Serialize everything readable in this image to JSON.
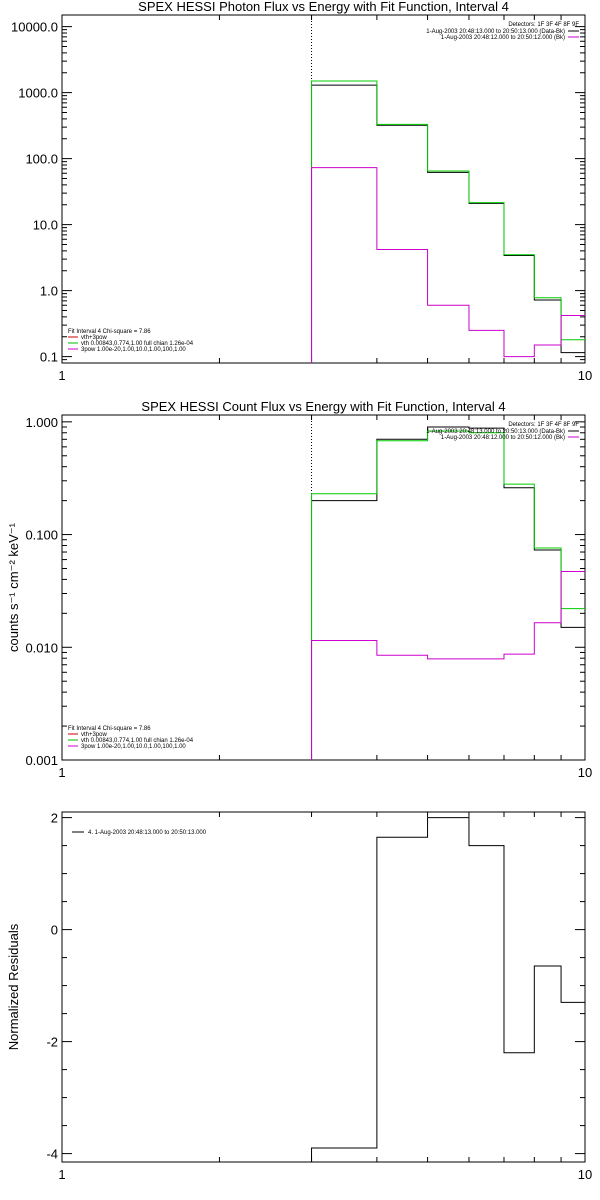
{
  "chart_data": [
    {
      "type": "line",
      "step": true,
      "title": "SPEX HESSI Photon Flux vs Energy with Fit Function, Interval 4",
      "xlabel": "",
      "ylabel": "",
      "xscale": "log",
      "yscale": "log",
      "xlim": [
        1,
        10
      ],
      "ylim": [
        0.08,
        15000
      ],
      "xticks": [
        {
          "v": 1,
          "label": "1"
        },
        {
          "v": 10,
          "label": "10"
        }
      ],
      "yticks": [
        {
          "v": 10000,
          "label": "10000.0"
        },
        {
          "v": 1000,
          "label": "1000.0"
        },
        {
          "v": 100,
          "label": "100.0"
        },
        {
          "v": 10,
          "label": "10.0"
        },
        {
          "v": 1,
          "label": "1.0"
        },
        {
          "v": 0.1,
          "label": "0.1"
        }
      ],
      "vline": 3,
      "legend_top": {
        "header": "Detectors: 1F 3F 4F 8F 9F",
        "entries": [
          {
            "label": "1-Aug-2003 20:48:13.000 to 20:50:13.000 (Data-Bk)",
            "color": "#000000"
          },
          {
            "label": "1-Aug-2003 20:48:12.000 to 20:50:12.000 (Bk)",
            "color": "#cc00cc"
          }
        ]
      },
      "legend_bottom": {
        "header": "Fit Interval 4   Chi-square = 7.86",
        "entries": [
          {
            "label": "vth+3pow",
            "color": "#cc0000"
          },
          {
            "label": "vth 0.00843,0.774,1.00   full chian 1.26e-04",
            "color": "#00bb00"
          },
          {
            "label": "3pow 1.00e-20,1.00,10.0,1.00,100,1.00",
            "color": "#cc00cc"
          }
        ]
      },
      "edges": [
        3,
        4,
        5,
        6,
        7,
        8,
        9,
        10
      ],
      "series": [
        {
          "color": "#000000",
          "values": [
            1300,
            320,
            62,
            21,
            3.4,
            0.72,
            0.115
          ]
        },
        {
          "color": "#00cc00",
          "values": [
            1500,
            330,
            65,
            21.5,
            3.5,
            0.78,
            0.18
          ]
        },
        {
          "color": "#cc00cc",
          "values": [
            73,
            4.2,
            0.6,
            0.25,
            0.1,
            0.15,
            0.42
          ]
        }
      ]
    },
    {
      "type": "line",
      "step": true,
      "title": "SPEX HESSI Count Flux vs Energy with Fit Function, Interval 4",
      "xlabel": "",
      "ylabel": "counts s⁻¹ cm⁻² keV⁻¹",
      "xscale": "log",
      "yscale": "log",
      "xlim": [
        1,
        10
      ],
      "ylim": [
        0.001,
        1.15
      ],
      "xticks": [
        {
          "v": 1,
          "label": "1"
        },
        {
          "v": 10,
          "label": "10"
        }
      ],
      "yticks": [
        {
          "v": 1,
          "label": "1.000"
        },
        {
          "v": 0.1,
          "label": "0.100"
        },
        {
          "v": 0.01,
          "label": "0.010"
        },
        {
          "v": 0.001,
          "label": "0.001"
        }
      ],
      "vline": 3,
      "legend_top": {
        "header": "Detectors: 1F 3F 4F 8F 9F",
        "entries": [
          {
            "label": "1-Aug-2003 20:48:13.000 to 20:50:13.000 (Data-Bk)",
            "color": "#000000"
          },
          {
            "label": "1-Aug-2003 20:48:12.000 to 20:50:12.000 (Bk)",
            "color": "#cc00cc"
          }
        ]
      },
      "legend_bottom": {
        "header": "Fit Interval 4   Chi-square = 7.86",
        "entries": [
          {
            "label": "vth+3pow",
            "color": "#cc0000"
          },
          {
            "label": "vth 0.00843,0.774,1.00   full chian 1.26e-04",
            "color": "#00bb00"
          },
          {
            "label": "3pow 1.00e-20,1.00,10.0,1.00,100,1.00",
            "color": "#cc00cc"
          }
        ]
      },
      "edges": [
        3,
        4,
        5,
        6,
        7,
        8,
        9,
        10
      ],
      "series": [
        {
          "color": "#000000",
          "values": [
            0.2,
            0.7,
            0.9,
            0.88,
            0.26,
            0.073,
            0.015
          ]
        },
        {
          "color": "#00cc00",
          "values": [
            0.23,
            0.68,
            0.83,
            0.8,
            0.28,
            0.076,
            0.022
          ]
        },
        {
          "color": "#cc00cc",
          "values": [
            0.0115,
            0.0085,
            0.0079,
            0.0079,
            0.0087,
            0.0165,
            0.047
          ]
        }
      ]
    },
    {
      "type": "line",
      "step": true,
      "title": "",
      "xlabel": "",
      "ylabel": "Normalized Residuals",
      "xscale": "log",
      "yscale": "linear",
      "xlim": [
        1,
        10
      ],
      "ylim": [
        -4.15,
        2.1
      ],
      "xticks": [
        {
          "v": 1,
          "label": "1"
        },
        {
          "v": 10,
          "label": "10"
        }
      ],
      "yticks": [
        {
          "v": 2,
          "label": "2"
        },
        {
          "v": 0,
          "label": "0"
        },
        {
          "v": -2,
          "label": "-2"
        },
        {
          "v": -4,
          "label": "-4"
        }
      ],
      "legend_top": {
        "header": "",
        "entries": [
          {
            "label": "4.  1-Aug-2003 20:48:13.000 to 20:50:13.000",
            "color": "#000000"
          }
        ]
      },
      "edges": [
        3,
        4,
        5,
        6,
        7,
        8,
        9,
        10
      ],
      "series": [
        {
          "color": "#000000",
          "values": [
            -3.9,
            1.65,
            2.0,
            1.5,
            -2.2,
            -0.65,
            -1.3
          ]
        }
      ]
    }
  ]
}
